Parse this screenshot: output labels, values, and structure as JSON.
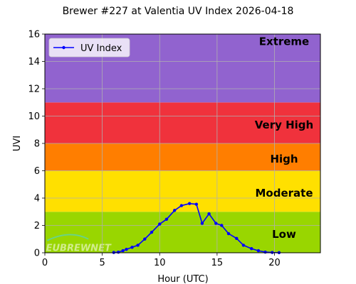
{
  "chart_data": {
    "type": "line",
    "title": "Brewer #227 at Valentia UV Index 2026-04-18",
    "xlabel": "Hour (UTC)",
    "ylabel": "UVI",
    "xlim": [
      0,
      24
    ],
    "ylim": [
      0,
      16
    ],
    "x_ticks": [
      "0",
      "5",
      "10",
      "15",
      "20"
    ],
    "y_ticks": [
      "0",
      "2",
      "4",
      "6",
      "8",
      "10",
      "12",
      "14",
      "16"
    ],
    "grid": true,
    "legend": "top-left",
    "bands": [
      {
        "label": "Low",
        "from": 0,
        "to": 3,
        "color": "#99d600"
      },
      {
        "label": "Moderate",
        "from": 3,
        "to": 6,
        "color": "#ffe000"
      },
      {
        "label": "High",
        "from": 6,
        "to": 8,
        "color": "#ff7e00"
      },
      {
        "label": "Very High",
        "from": 8,
        "to": 11,
        "color": "#f0323c"
      },
      {
        "label": "Extreme",
        "from": 11,
        "to": 16,
        "color": "#9163cf"
      }
    ],
    "series": [
      {
        "name": "UV Index",
        "color": "#0000ff",
        "points": [
          [
            6.0,
            0.02
          ],
          [
            6.4,
            0.04
          ],
          [
            6.8,
            0.15
          ],
          [
            7.1,
            0.25
          ],
          [
            7.6,
            0.4
          ],
          [
            8.1,
            0.55
          ],
          [
            8.7,
            1.0
          ],
          [
            9.3,
            1.5
          ],
          [
            10.0,
            2.1
          ],
          [
            10.6,
            2.45
          ],
          [
            11.3,
            3.1
          ],
          [
            11.9,
            3.45
          ],
          [
            12.6,
            3.6
          ],
          [
            13.2,
            3.55
          ],
          [
            13.7,
            2.15
          ],
          [
            14.3,
            2.85
          ],
          [
            14.9,
            2.15
          ],
          [
            15.4,
            2.0
          ],
          [
            16.0,
            1.4
          ],
          [
            16.7,
            1.05
          ],
          [
            17.3,
            0.55
          ],
          [
            18.0,
            0.3
          ],
          [
            18.6,
            0.15
          ],
          [
            19.2,
            0.05
          ],
          [
            19.8,
            0.02
          ],
          [
            20.4,
            0.01
          ]
        ]
      }
    ],
    "watermark": "EUBREWNET"
  }
}
